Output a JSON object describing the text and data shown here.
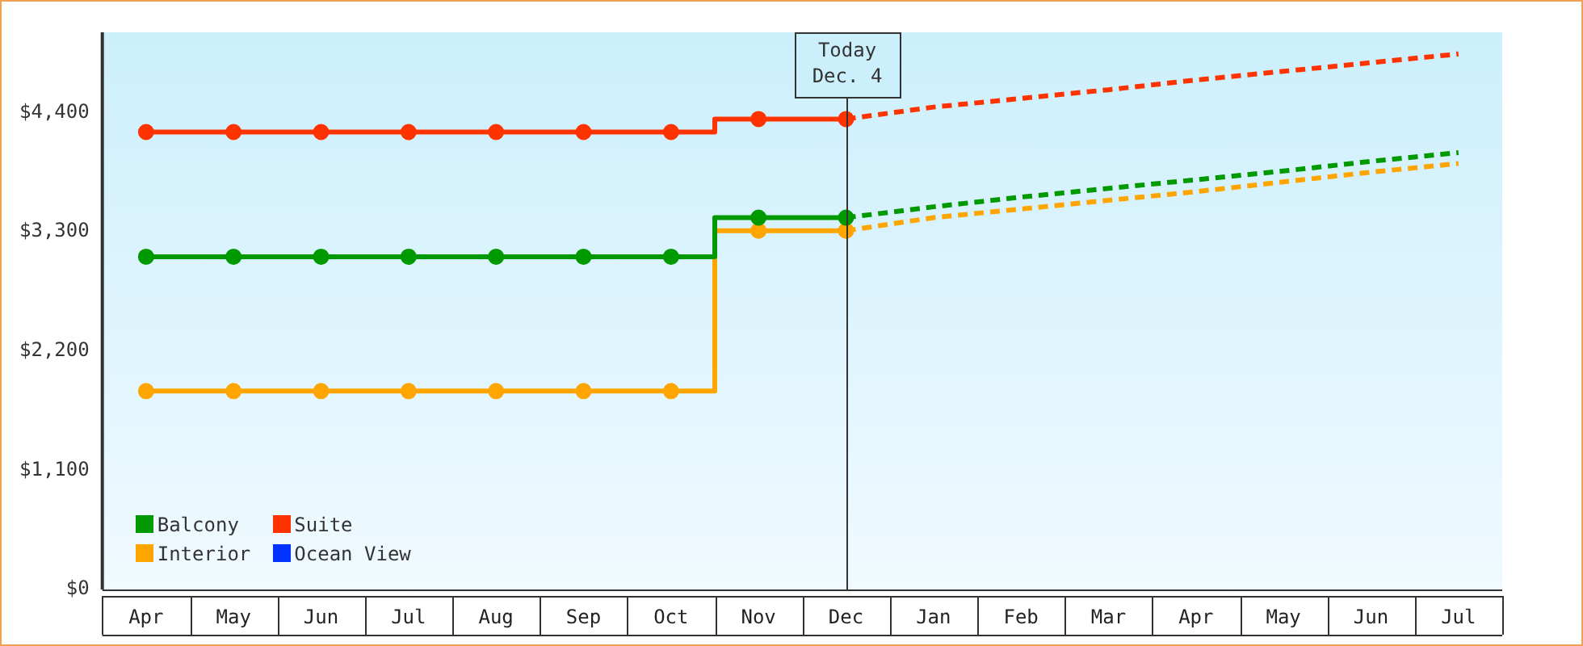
{
  "chart_data": {
    "type": "line",
    "categories": [
      "Apr",
      "May",
      "Jun",
      "Jul",
      "Aug",
      "Sep",
      "Oct",
      "Nov",
      "Dec",
      "Jan",
      "Feb",
      "Mar",
      "Apr",
      "May",
      "Jun",
      "Jul"
    ],
    "ylim": [
      0,
      5140
    ],
    "yticks": [
      {
        "value": 0,
        "label": "$0"
      },
      {
        "value": 1100,
        "label": "$1,100"
      },
      {
        "value": 2200,
        "label": "$2,200"
      },
      {
        "value": 3300,
        "label": "$3,300"
      },
      {
        "value": 4400,
        "label": "$4,400"
      }
    ],
    "grid": false,
    "legend": "bottom left",
    "ref_lines": [
      {
        "axis": "x",
        "value": "Dec",
        "label": "Today\nDec. 4"
      }
    ],
    "series": [
      {
        "name": "Balcony",
        "type": "step",
        "color": "#009900",
        "marker": "circle",
        "line_style": "solid",
        "values": [
          3070,
          3070,
          3070,
          3070,
          3070,
          3070,
          3070,
          3430,
          3430,
          null,
          null,
          null,
          null,
          null,
          null,
          null
        ]
      },
      {
        "name": "Suite",
        "type": "step",
        "color": "#ff3300",
        "marker": "circle",
        "line_style": "solid",
        "values": [
          4220,
          4220,
          4220,
          4220,
          4220,
          4220,
          4220,
          4340,
          4340,
          null,
          null,
          null,
          null,
          null,
          null,
          null
        ]
      },
      {
        "name": "Interior",
        "type": "step",
        "color": "#ffa500",
        "marker": "circle",
        "line_style": "solid",
        "values": [
          1830,
          1830,
          1830,
          1830,
          1830,
          1830,
          1830,
          3310,
          3310,
          null,
          null,
          null,
          null,
          null,
          null,
          null
        ]
      },
      {
        "name": "Ocean View",
        "type": "step",
        "color": "#0033ff",
        "marker": "none",
        "line_style": "solid",
        "values": [
          null,
          null,
          null,
          null,
          null,
          null,
          null,
          null,
          null,
          null,
          null,
          null,
          null,
          null,
          null,
          null
        ]
      },
      {
        "color": "#009900",
        "marker": "none",
        "line_style": "dashed",
        "values": [
          null,
          null,
          null,
          null,
          null,
          null,
          null,
          null,
          3430,
          3530,
          3620,
          3700,
          3780,
          3860,
          3950,
          4030
        ]
      },
      {
        "color": "#ff3300",
        "marker": "none",
        "line_style": "dashed",
        "values": [
          null,
          null,
          null,
          null,
          null,
          null,
          null,
          null,
          4340,
          4450,
          4530,
          4610,
          4700,
          4780,
          4860,
          4940
        ]
      },
      {
        "color": "#ffa500",
        "marker": "none",
        "line_style": "dashed",
        "values": [
          null,
          null,
          null,
          null,
          null,
          null,
          null,
          null,
          3310,
          3430,
          3510,
          3590,
          3670,
          3760,
          3850,
          3930
        ]
      }
    ]
  }
}
